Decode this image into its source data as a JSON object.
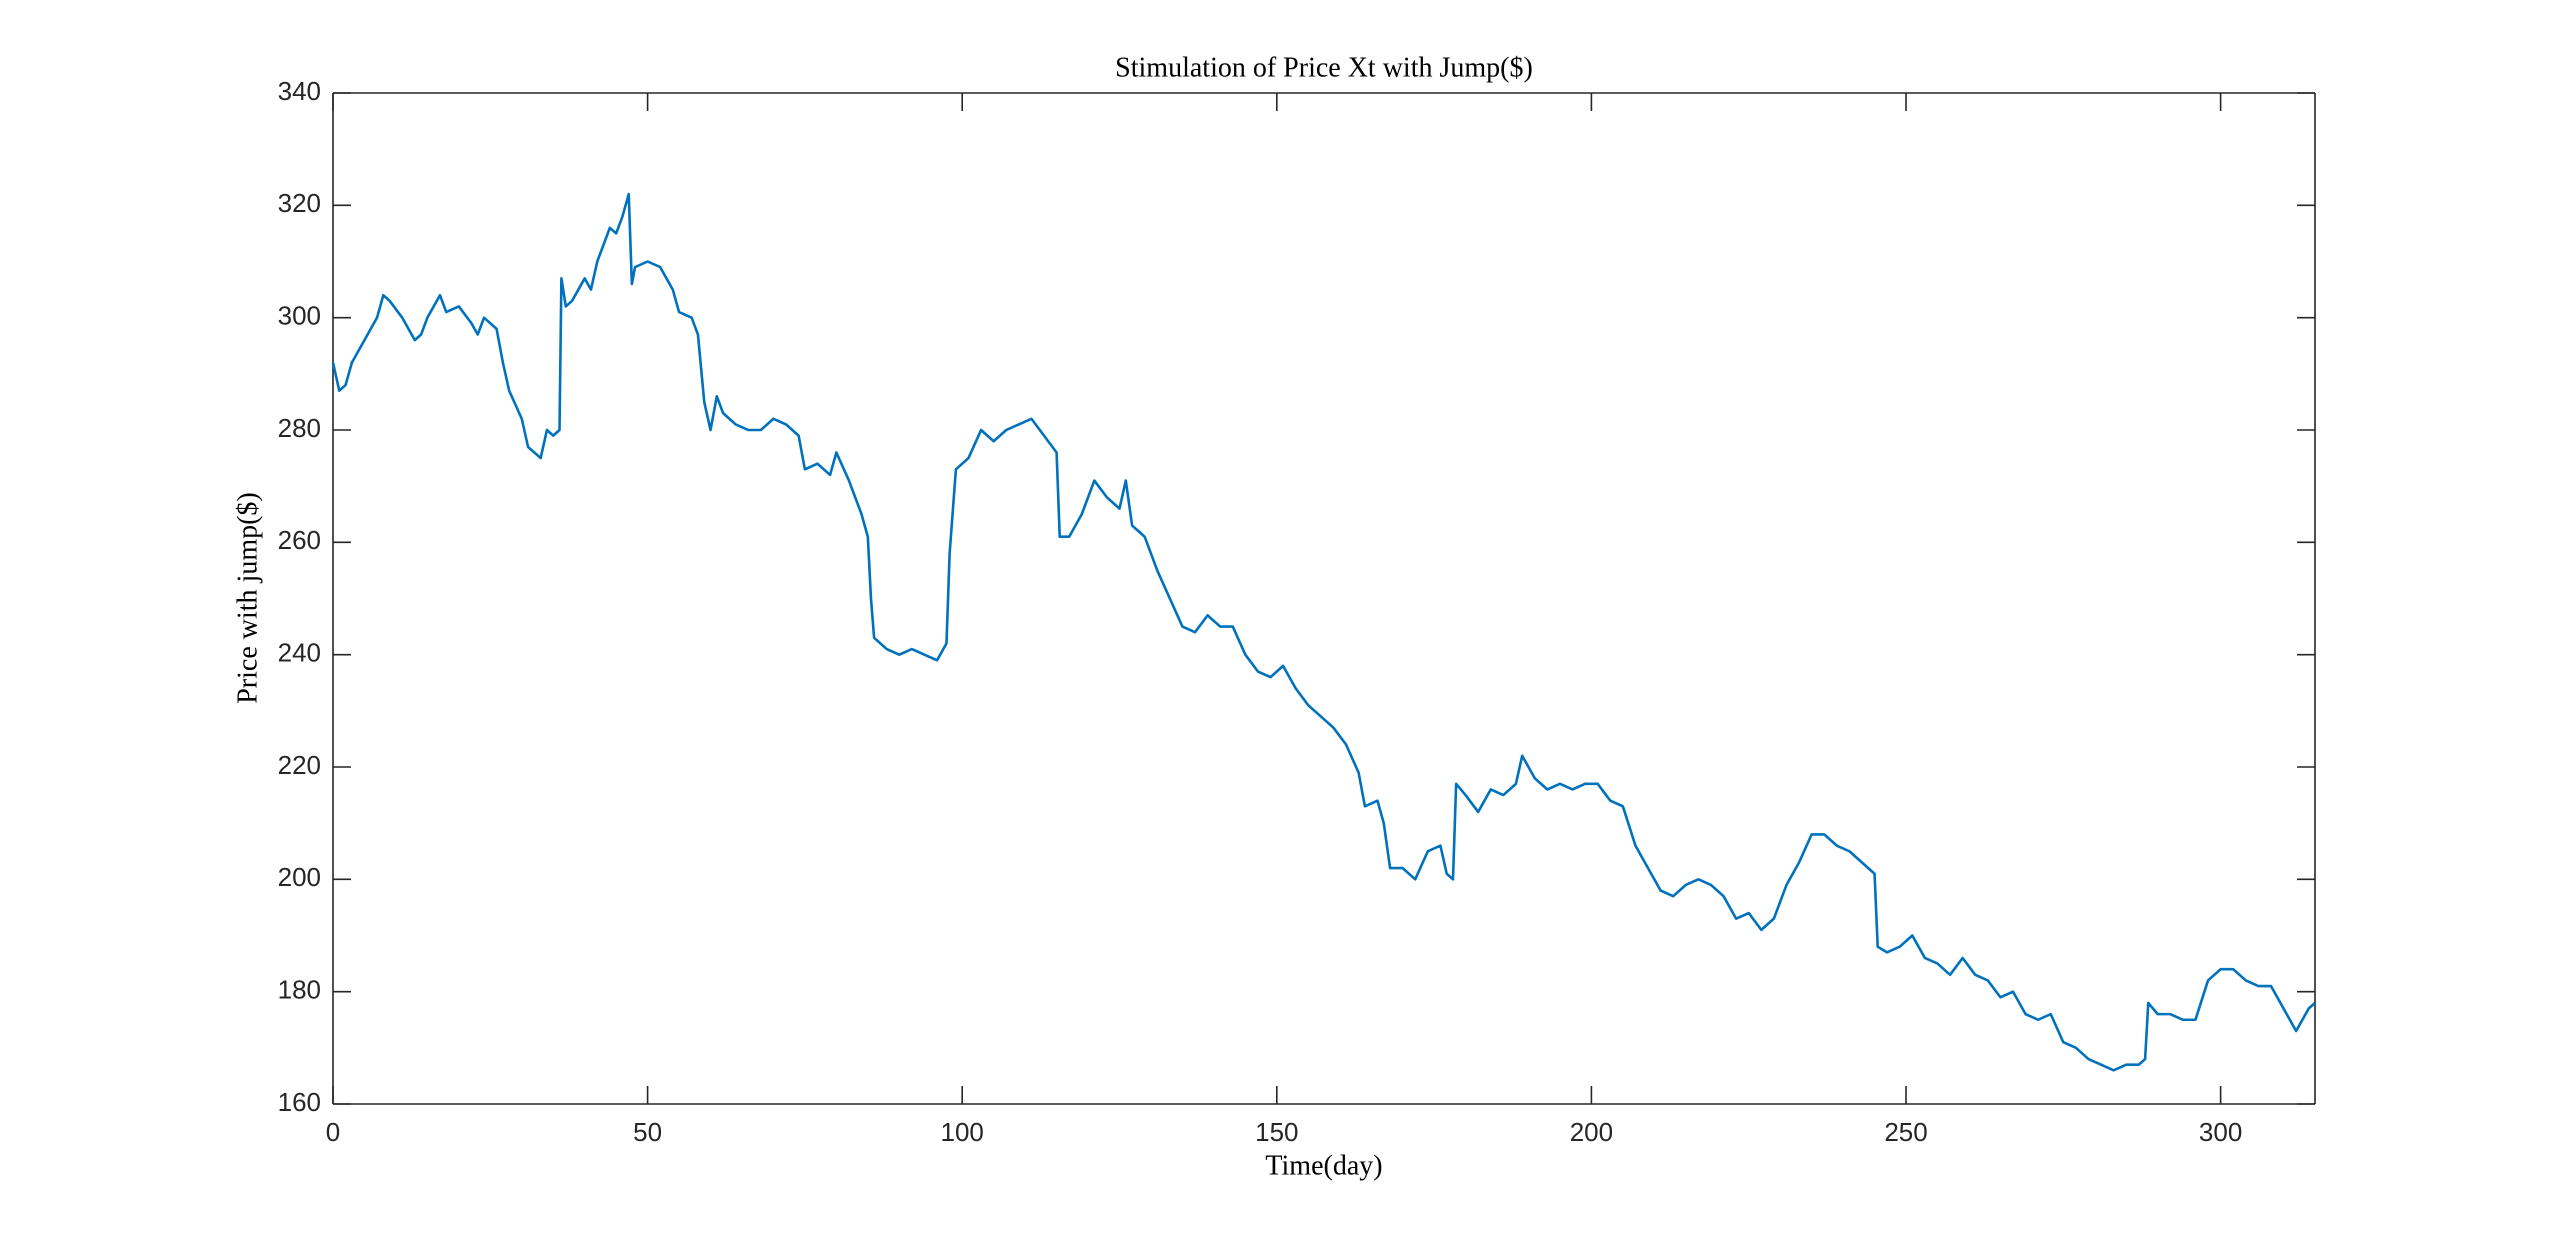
{
  "chart_data": {
    "type": "line",
    "title": "Stimulation of Price Xt with Jump($)",
    "x_label": "Time(day)",
    "y_label": "Price with jump($)",
    "color": "#0072bd",
    "xlim": [
      0,
      315
    ],
    "ylim": [
      160,
      340
    ],
    "xticks": [
      0,
      50,
      100,
      150,
      200,
      250,
      300
    ],
    "yticks": [
      160,
      180,
      200,
      220,
      240,
      260,
      280,
      300,
      320,
      340
    ],
    "x": [
      0,
      1,
      2,
      3,
      5,
      7,
      8,
      9,
      11,
      13,
      14,
      15,
      17,
      18,
      20,
      22,
      23,
      24,
      26,
      27,
      28,
      30,
      31,
      33,
      34,
      35,
      36,
      36.3,
      37,
      38,
      40,
      41,
      42,
      43,
      44,
      45,
      46,
      47,
      47.5,
      48,
      50,
      52,
      54,
      55,
      57,
      58,
      59,
      60,
      61,
      62,
      64,
      66,
      68,
      70,
      72,
      74,
      75,
      77,
      79,
      80,
      82,
      84,
      85,
      85.5,
      86,
      88,
      90,
      92,
      94,
      96,
      97.5,
      98,
      99,
      101,
      103,
      105,
      107,
      109,
      111,
      113,
      115,
      115.5,
      117,
      119,
      121,
      123,
      125,
      126,
      127,
      129,
      131,
      133,
      135,
      137,
      139,
      141,
      143,
      145,
      147,
      149,
      151,
      153,
      155,
      157,
      159,
      161,
      163,
      164,
      166,
      167,
      168,
      170,
      172,
      174,
      176,
      177,
      178,
      178.5,
      180,
      182,
      184,
      186,
      188,
      189,
      191,
      193,
      195,
      197,
      199,
      201,
      203,
      205,
      207,
      209,
      211,
      213,
      215,
      217,
      219,
      221,
      223,
      225,
      227,
      229,
      231,
      233,
      235,
      237,
      239,
      241,
      243,
      245,
      245.5,
      247,
      249,
      251,
      253,
      255,
      257,
      259,
      261,
      263,
      265,
      267,
      269,
      271,
      273,
      275,
      277,
      279,
      281,
      283,
      285,
      287,
      288,
      288.5,
      290,
      292,
      294,
      296,
      298,
      300,
      302,
      304,
      306,
      308,
      310,
      312,
      314,
      315
    ],
    "values": [
      292,
      287,
      288,
      292,
      296,
      300,
      304,
      303,
      300,
      296,
      297,
      300,
      304,
      301,
      302,
      299,
      297,
      300,
      298,
      292,
      287,
      282,
      277,
      275,
      280,
      279,
      280,
      307,
      302,
      303,
      307,
      305,
      310,
      313,
      316,
      315,
      318,
      322,
      306,
      309,
      310,
      309,
      305,
      301,
      300,
      297,
      285,
      280,
      286,
      283,
      281,
      280,
      280,
      282,
      281,
      279,
      273,
      274,
      272,
      276,
      271,
      265,
      261,
      250,
      243,
      241,
      240,
      241,
      240,
      239,
      242,
      258,
      273,
      275,
      280,
      278,
      280,
      281,
      282,
      279,
      276,
      261,
      261,
      265,
      271,
      268,
      266,
      271,
      263,
      261,
      255,
      250,
      245,
      244,
      247,
      245,
      245,
      240,
      237,
      236,
      238,
      234,
      231,
      229,
      227,
      224,
      219,
      213,
      214,
      210,
      202,
      202,
      200,
      205,
      206,
      201,
      200,
      217,
      215,
      212,
      216,
      215,
      217,
      222,
      218,
      216,
      217,
      216,
      217,
      217,
      214,
      213,
      206,
      202,
      198,
      197,
      199,
      200,
      199,
      197,
      193,
      194,
      191,
      193,
      199,
      203,
      208,
      208,
      206,
      205,
      203,
      201,
      188,
      187,
      188,
      190,
      186,
      185,
      183,
      186,
      183,
      182,
      179,
      180,
      176,
      175,
      176,
      171,
      170,
      168,
      167,
      166,
      167,
      167,
      168,
      178,
      176,
      176,
      175,
      175,
      182,
      184,
      184,
      182,
      181,
      181,
      177,
      173,
      177,
      178
    ]
  }
}
